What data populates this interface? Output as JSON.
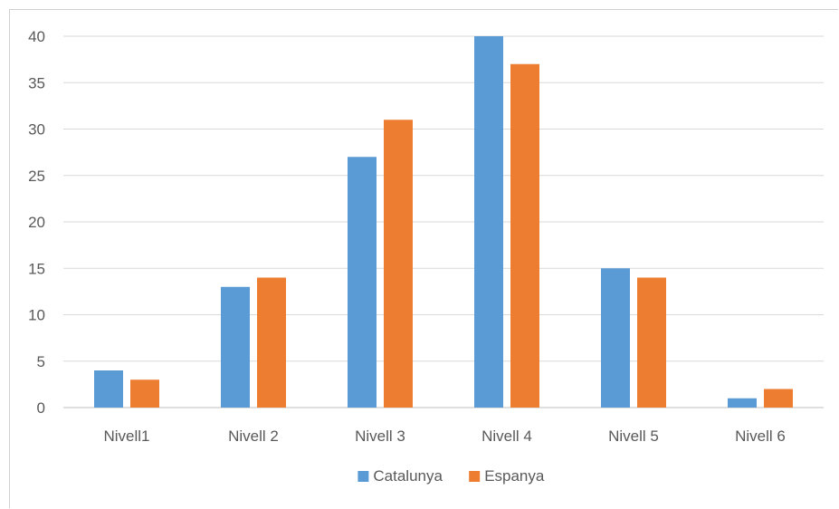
{
  "chart_data": {
    "type": "bar",
    "categories": [
      "Nivell1",
      "Nivell 2",
      "Nivell 3",
      "Nivell 4",
      "Nivell 5",
      "Nivell 6"
    ],
    "series": [
      {
        "name": "Catalunya",
        "values": [
          4,
          13,
          27,
          40,
          15,
          1
        ],
        "color": "#5B9BD5"
      },
      {
        "name": "Espanya",
        "values": [
          3,
          14,
          31,
          37,
          14,
          2
        ],
        "color": "#ED7D31"
      }
    ],
    "ylim": [
      0,
      40
    ],
    "yticks": [
      "0",
      "5",
      "10",
      "15",
      "20",
      "25",
      "30",
      "35",
      "40"
    ],
    "grid": true,
    "legend_position": "bottom",
    "colors": {
      "gridline": "#d9d9d9",
      "text": "#595959"
    }
  }
}
